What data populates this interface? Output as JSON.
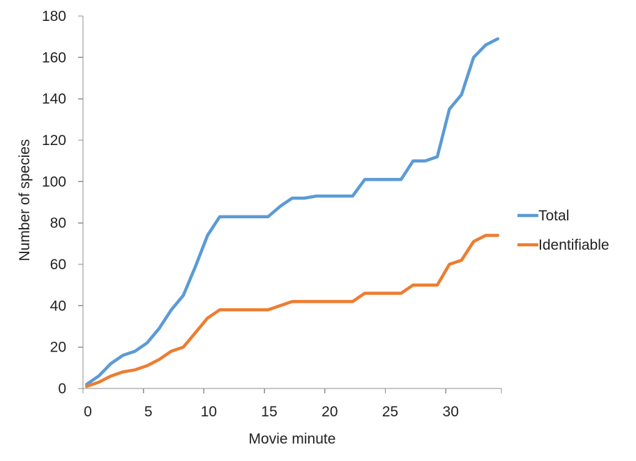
{
  "chart_data": {
    "type": "line",
    "title": "",
    "xlabel": "Movie minute",
    "ylabel": "Number of species",
    "xlim": [
      0,
      34.6
    ],
    "ylim": [
      0,
      180
    ],
    "x_ticks": [
      0,
      5,
      10,
      15,
      20,
      25,
      30
    ],
    "y_ticks": [
      0,
      20,
      40,
      60,
      80,
      100,
      120,
      140,
      160,
      180
    ],
    "grid": false,
    "legend_position": "right",
    "x": [
      0.3,
      1.3,
      2.3,
      3.3,
      4.3,
      5.3,
      6.3,
      7.3,
      8.3,
      9.3,
      10.3,
      11.3,
      12.3,
      13.3,
      14.3,
      15.3,
      16.3,
      17.3,
      18.3,
      19.3,
      20.3,
      21.3,
      22.3,
      23.3,
      24.3,
      25.3,
      26.3,
      27.3,
      28.3,
      29.3,
      30.3,
      31.3,
      32.3,
      33.3,
      34.3
    ],
    "series": [
      {
        "name": "Total",
        "color": "#5B9BD5",
        "values": [
          2,
          6,
          12,
          16,
          18,
          22,
          29,
          38,
          45,
          59,
          74,
          83,
          83,
          83,
          83,
          83,
          88,
          92,
          92,
          93,
          93,
          93,
          93,
          101,
          101,
          101,
          101,
          110,
          110,
          112,
          135,
          142,
          160,
          166,
          169
        ]
      },
      {
        "name": "Identifiable",
        "color": "#ED7D31",
        "values": [
          1,
          3,
          6,
          8,
          9,
          11,
          14,
          18,
          20,
          27,
          34,
          38,
          38,
          38,
          38,
          38,
          40,
          42,
          42,
          42,
          42,
          42,
          42,
          46,
          46,
          46,
          46,
          50,
          50,
          50,
          60,
          62,
          71,
          74,
          74
        ]
      }
    ]
  }
}
